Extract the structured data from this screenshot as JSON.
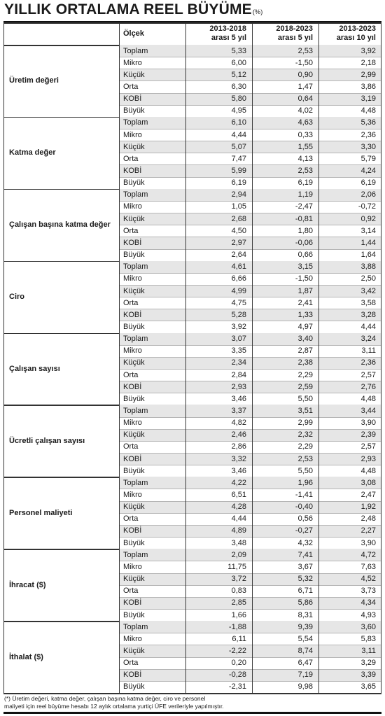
{
  "title": "YILLIK ORTALAMA REEL BÜYÜME",
  "title_unit": "(%)",
  "table": {
    "header": [
      "Ölçek",
      [
        "2013-2018",
        "arası 5 yıl"
      ],
      [
        "2018-2023",
        "arası 5 yıl"
      ],
      [
        "2013-2023",
        "arası 10 yıl"
      ]
    ],
    "groups": [
      {
        "label": "Üretim değeri",
        "rows": [
          [
            "Toplam",
            "5,33",
            "2,53",
            "3,92"
          ],
          [
            "Mikro",
            "6,00",
            "-1,50",
            "2,18"
          ],
          [
            "Küçük",
            "5,12",
            "0,90",
            "2,99"
          ],
          [
            "Orta",
            "6,30",
            "1,47",
            "3,86"
          ],
          [
            "KOBİ",
            "5,80",
            "0,64",
            "3,19"
          ],
          [
            "Büyük",
            "4,95",
            "4,02",
            "4,48"
          ]
        ]
      },
      {
        "label": "Katma değer",
        "rows": [
          [
            "Toplam",
            "6,10",
            "4,63",
            "5,36"
          ],
          [
            "Mikro",
            "4,44",
            "0,33",
            "2,36"
          ],
          [
            "Küçük",
            "5,07",
            "1,55",
            "3,30"
          ],
          [
            "Orta",
            "7,47",
            "4,13",
            "5,79"
          ],
          [
            "KOBİ",
            "5,99",
            "2,53",
            "4,24"
          ],
          [
            "Büyük",
            "6,19",
            "6,19",
            "6,19"
          ]
        ]
      },
      {
        "label": "Çalışan başına katma değer",
        "rows": [
          [
            "Toplam",
            "2,94",
            "1,19",
            "2,06"
          ],
          [
            "Mikro",
            "1,05",
            "-2,47",
            "-0,72"
          ],
          [
            "Küçük",
            "2,68",
            "-0,81",
            "0,92"
          ],
          [
            "Orta",
            "4,50",
            "1,80",
            "3,14"
          ],
          [
            "KOBİ",
            "2,97",
            "-0,06",
            "1,44"
          ],
          [
            "Büyük",
            "2,64",
            "0,66",
            "1,64"
          ]
        ]
      },
      {
        "label": "Ciro",
        "rows": [
          [
            "Toplam",
            "4,61",
            "3,15",
            "3,88"
          ],
          [
            "Mikro",
            "6,66",
            "-1,50",
            "2,50"
          ],
          [
            "Küçük",
            "4,99",
            "1,87",
            "3,42"
          ],
          [
            "Orta",
            "4,75",
            "2,41",
            "3,58"
          ],
          [
            "KOBİ",
            "5,28",
            "1,33",
            "3,28"
          ],
          [
            "Büyük",
            "3,92",
            "4,97",
            "4,44"
          ]
        ]
      },
      {
        "label": "Çalışan sayısı",
        "rows": [
          [
            "Toplam",
            "3,07",
            "3,40",
            "3,24"
          ],
          [
            "Mikro",
            "3,35",
            "2,87",
            "3,11"
          ],
          [
            "Küçük",
            "2,34",
            "2,38",
            "2,36"
          ],
          [
            "Orta",
            "2,84",
            "2,29",
            "2,57"
          ],
          [
            "KOBİ",
            "2,93",
            "2,59",
            "2,76"
          ],
          [
            "Büyük",
            "3,46",
            "5,50",
            "4,48"
          ]
        ]
      },
      {
        "label": "Ücretli çalışan sayısı",
        "rows": [
          [
            "Toplam",
            "3,37",
            "3,51",
            "3,44"
          ],
          [
            "Mikro",
            "4,82",
            "2,99",
            "3,90"
          ],
          [
            "Küçük",
            "2,46",
            "2,32",
            "2,39"
          ],
          [
            "Orta",
            "2,86",
            "2,29",
            "2,57"
          ],
          [
            "KOBİ",
            "3,32",
            "2,53",
            "2,93"
          ],
          [
            "Büyük",
            "3,46",
            "5,50",
            "4,48"
          ]
        ]
      },
      {
        "label": "Personel maliyeti",
        "rows": [
          [
            "Toplam",
            "4,22",
            "1,96",
            "3,08"
          ],
          [
            "Mikro",
            "6,51",
            "-1,41",
            "2,47"
          ],
          [
            "Küçük",
            "4,28",
            "-0,40",
            "1,92"
          ],
          [
            "Orta",
            "4,44",
            "0,56",
            "2,48"
          ],
          [
            "KOBİ",
            "4,89",
            "-0,27",
            "2,27"
          ],
          [
            "Büyük",
            "3,48",
            "4,32",
            "3,90"
          ]
        ]
      },
      {
        "label": "İhracat ($)",
        "rows": [
          [
            "Toplam",
            "2,09",
            "7,41",
            "4,72"
          ],
          [
            "Mikro",
            "11,75",
            "3,67",
            "7,63"
          ],
          [
            "Küçük",
            "3,72",
            "5,32",
            "4,52"
          ],
          [
            "Orta",
            "0,83",
            "6,71",
            "3,73"
          ],
          [
            "KOBİ",
            "2,85",
            "5,86",
            "4,34"
          ],
          [
            "Büyük",
            "1,66",
            "8,31",
            "4,93"
          ]
        ]
      },
      {
        "label": "İthalat ($)",
        "rows": [
          [
            "Toplam",
            "-1,88",
            "9,39",
            "3,60"
          ],
          [
            "Mikro",
            "6,11",
            "5,54",
            "5,83"
          ],
          [
            "Küçük",
            "-2,22",
            "8,74",
            "3,11"
          ],
          [
            "Orta",
            "0,20",
            "6,47",
            "3,29"
          ],
          [
            "KOBİ",
            "-0,28",
            "7,19",
            "3,39"
          ],
          [
            "Büyük",
            "-2,31",
            "9,98",
            "3,65"
          ]
        ]
      }
    ]
  },
  "footnote": [
    "(*) Üretim değeri, katma değer, çalışan başına katma değer, ciro ve personel",
    "maliyeti için reel büyüme hesabı 12 aylık ortalama yurtiçi ÜFE verileriyle yapılmıştır."
  ]
}
